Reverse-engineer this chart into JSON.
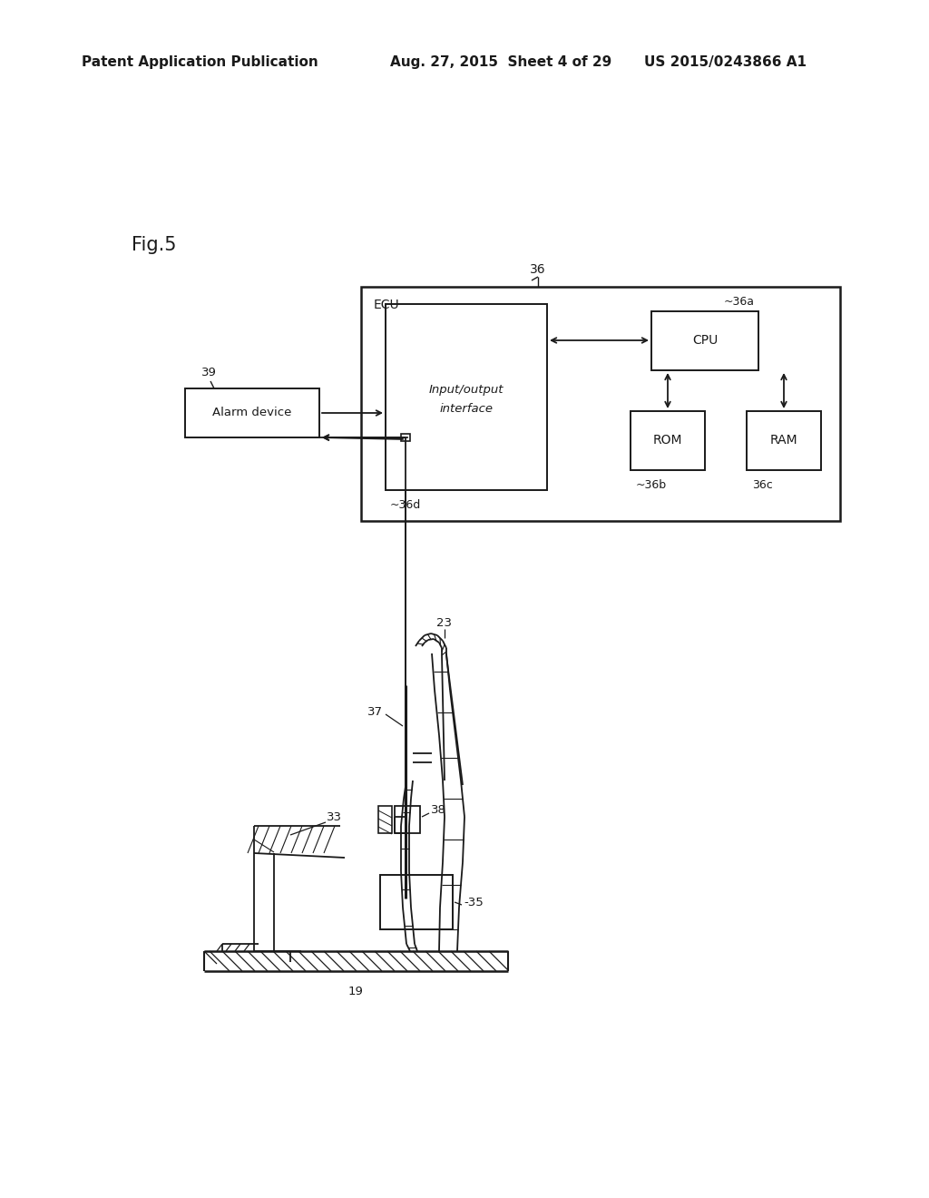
{
  "bg_color": "#ffffff",
  "header_left": "Patent Application Publication",
  "header_center": "Aug. 27, 2015  Sheet 4 of 29",
  "header_right": "US 2015/0243866 A1",
  "fig_label": "Fig.5",
  "ecu_label": "ECU",
  "ecu_ref": "36",
  "io_label_1": "Input/output",
  "io_label_2": "interface",
  "io_ref": "~36d",
  "cpu_label": "CPU",
  "cpu_ref": "~36a",
  "rom_label": "ROM",
  "rom_ref": "36b",
  "ram_label": "RAM",
  "ram_ref": "36c",
  "alarm_label": "Alarm device",
  "alarm_ref": "39",
  "ref_23": "23",
  "ref_33": "33",
  "ref_35": "35",
  "ref_37": "37",
  "ref_38": "38",
  "ref_19": "19"
}
